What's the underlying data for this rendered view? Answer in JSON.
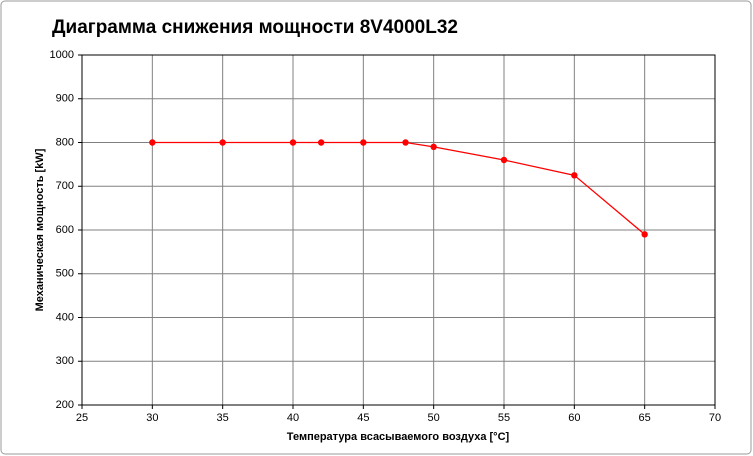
{
  "chart_data": {
    "type": "line",
    "title": "Диаграмма снижения мощности 8V4000L32",
    "x_label": "Температура всасываемого воздуха [°C]",
    "y_label": "Механическая мощность [kW]",
    "series": [
      {
        "name": "8V4000L32",
        "color": "#ff0000",
        "x": [
          30,
          35,
          40,
          42,
          45,
          48,
          50,
          55,
          60,
          65
        ],
        "values": [
          800,
          800,
          800,
          800,
          800,
          800,
          790,
          760,
          725,
          590
        ]
      }
    ],
    "xlim": [
      25,
      70
    ],
    "xticks": [
      25,
      30,
      35,
      40,
      45,
      50,
      55,
      60,
      65,
      70
    ],
    "ylim": [
      200,
      1000
    ],
    "yticks": [
      200,
      300,
      400,
      500,
      600,
      700,
      800,
      900,
      1000
    ],
    "grid": true
  }
}
